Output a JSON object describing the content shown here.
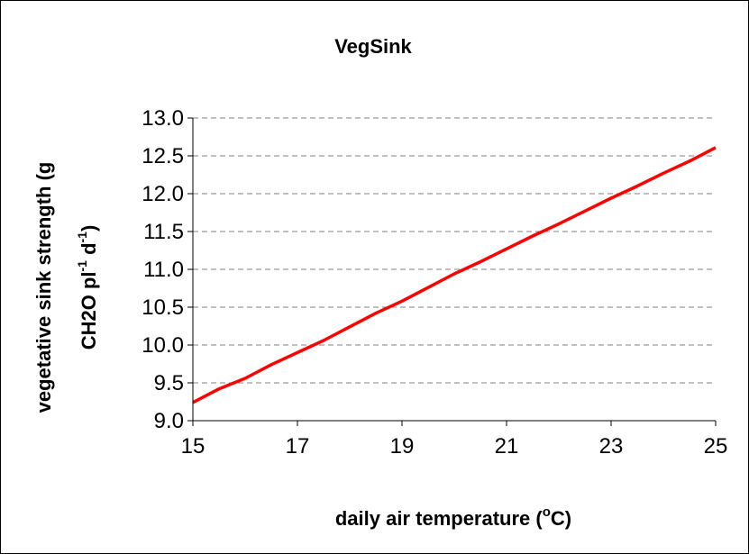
{
  "chart_data": {
    "type": "line",
    "title": "VegSink",
    "xlabel": {
      "pre": "daily air temperature (",
      "sup": "o",
      "post": "C)"
    },
    "ylabel": {
      "line1": "vegetative sink strength (g",
      "line2_parts": [
        {
          "t": "CH",
          "s": "n"
        },
        {
          "t": "2",
          "s": "n"
        },
        {
          "t": "O pl",
          "s": "n"
        },
        {
          "t": "-1",
          "s": "sup"
        },
        {
          "t": " d",
          "s": "n"
        },
        {
          "t": "-1",
          "s": "sup"
        },
        {
          "t": ")",
          "s": "n"
        }
      ]
    },
    "xlim": [
      15,
      25
    ],
    "ylim": [
      9.0,
      13.0
    ],
    "xticks": [
      "15",
      "17",
      "19",
      "21",
      "23",
      "25"
    ],
    "yticks": [
      "9.0",
      "9.5",
      "10.0",
      "10.5",
      "11.0",
      "11.5",
      "12.0",
      "12.5",
      "13.0"
    ],
    "grid": "horizontal dashed",
    "series": [
      {
        "color": "#ff0000",
        "x": [
          15.0,
          15.5,
          16.0,
          16.5,
          17.0,
          17.5,
          18.0,
          18.5,
          19.0,
          19.5,
          20.0,
          20.5,
          21.0,
          21.5,
          22.0,
          22.5,
          23.0,
          23.5,
          24.0,
          24.5,
          25.0
        ],
        "y": [
          9.24,
          9.42,
          9.56,
          9.74,
          9.9,
          10.06,
          10.24,
          10.42,
          10.58,
          10.76,
          10.94,
          11.1,
          11.27,
          11.44,
          11.6,
          11.77,
          11.94,
          12.1,
          12.27,
          12.43,
          12.61
        ]
      }
    ]
  }
}
